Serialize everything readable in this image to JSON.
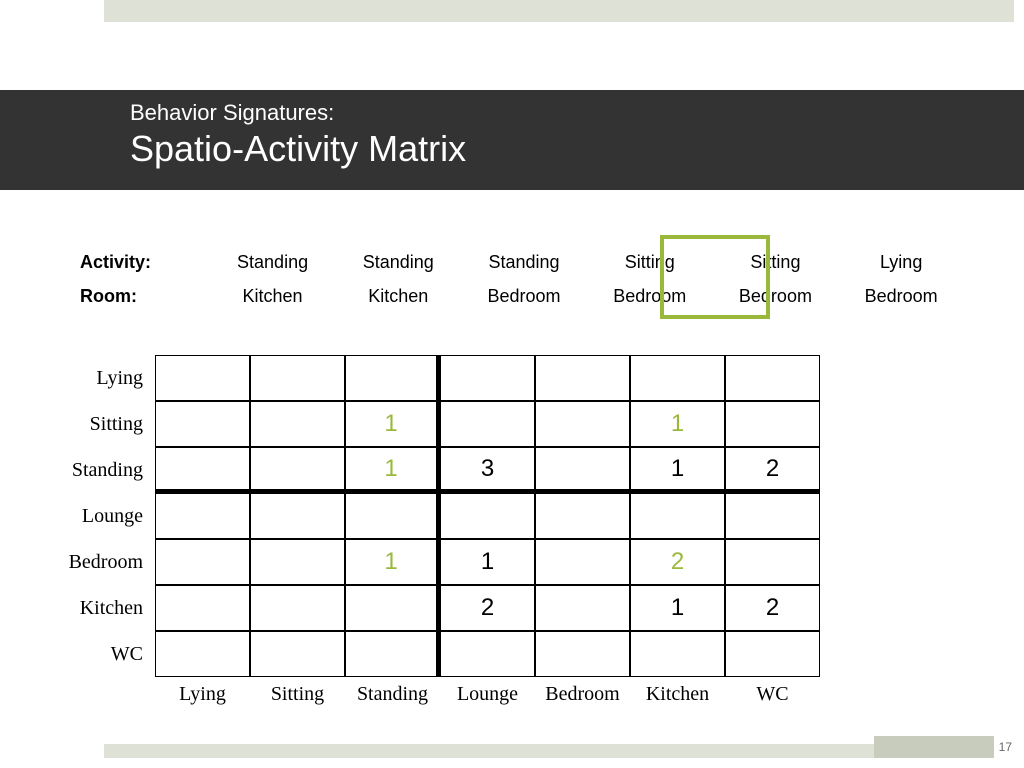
{
  "top_strip_color": "#dee2d6",
  "title_bar_bg": "#333333",
  "title_small": "Behavior Signatures:",
  "title_big": "Spatio-Activity Matrix",
  "accent_green": "#9ab93b",
  "activity_label": "Activity:",
  "room_label": "Room:",
  "activity_row": [
    "Standing",
    "Standing",
    "Standing",
    "Sitting",
    "Sitting",
    "Lying"
  ],
  "room_row": [
    "Kitchen",
    "Kitchen",
    "Bedroom",
    "Bedroom",
    "Bedroom",
    "Bedroom"
  ],
  "highlight_col_index": 3,
  "matrix": {
    "row_labels": [
      "Lying",
      "Sitting",
      "Standing",
      "Lounge",
      "Bedroom",
      "Kitchen",
      "WC"
    ],
    "col_labels": [
      "Lying",
      "Sitting",
      "Standing",
      "Lounge",
      "Bedroom",
      "Kitchen",
      "WC"
    ],
    "thick_after_row": 2,
    "thick_after_col": 2,
    "cells": [
      [
        "",
        "",
        "",
        "",
        "",
        "",
        ""
      ],
      [
        "",
        "",
        {
          "v": "1",
          "c": "green"
        },
        "",
        "",
        {
          "v": "1",
          "c": "green"
        },
        ""
      ],
      [
        "",
        "",
        {
          "v": "1",
          "c": "green"
        },
        {
          "v": "3",
          "c": "black"
        },
        "",
        {
          "v": "1",
          "c": "black"
        },
        {
          "v": "2",
          "c": "black"
        }
      ],
      [
        "",
        "",
        "",
        "",
        "",
        "",
        ""
      ],
      [
        "",
        "",
        {
          "v": "1",
          "c": "green"
        },
        {
          "v": "1",
          "c": "black"
        },
        "",
        {
          "v": "2",
          "c": "green"
        },
        ""
      ],
      [
        "",
        "",
        "",
        {
          "v": "2",
          "c": "black"
        },
        "",
        {
          "v": "1",
          "c": "black"
        },
        {
          "v": "2",
          "c": "black"
        }
      ],
      [
        "",
        "",
        "",
        "",
        "",
        "",
        ""
      ]
    ]
  },
  "page_number": "17"
}
